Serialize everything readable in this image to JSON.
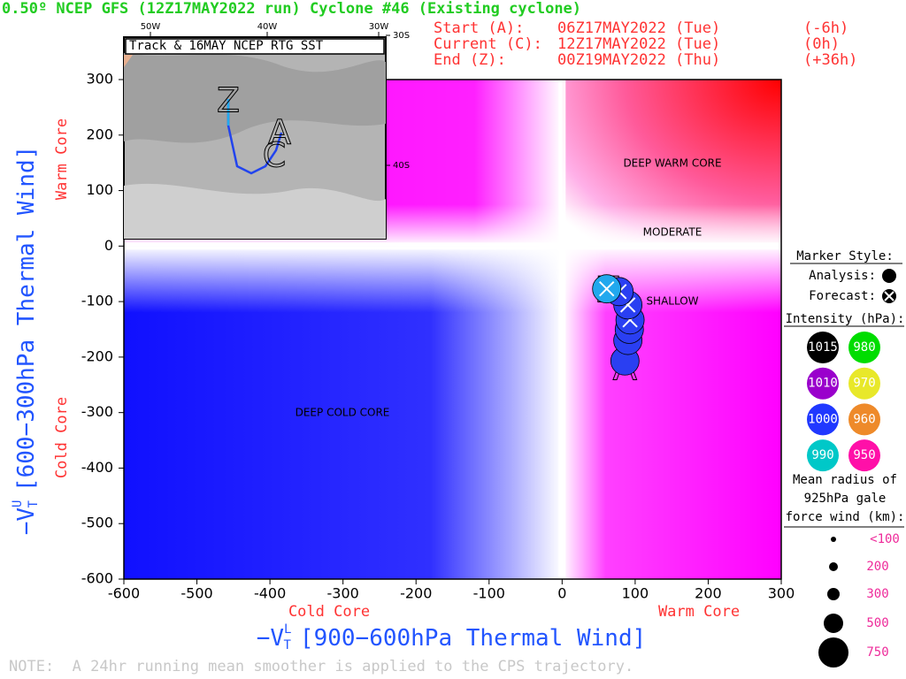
{
  "chart_data": {
    "type": "scatter",
    "title": "0.50º NCEP GFS (12Z17MAY2022 run) Cyclone #46 (Existing cyclone)",
    "time_info": [
      [
        "Start (A):",
        "06Z17MAY2022 (Tue)",
        "(-6h)"
      ],
      [
        "Current (C):",
        "12Z17MAY2022 (Tue)",
        "(0h)"
      ],
      [
        "End (Z):",
        "00Z19MAY2022 (Thu)",
        "(+36h)"
      ]
    ],
    "xlabel": {
      "main": "−V",
      "sub": "T",
      "sup": "L",
      "rest": "[900−600hPa Thermal Wind]"
    },
    "ylabel": {
      "main": "−V",
      "sub": "T",
      "sup": "U",
      "rest": "[600−300hPa Thermal Wind]"
    },
    "x_side_labels": [
      "Cold Core",
      "Warm Core"
    ],
    "y_side_labels": [
      "Cold Core",
      "Warm Core"
    ],
    "annotations": [
      "DEEP WARM CORE",
      "MODERATE",
      "SHALLOW",
      "DEEP COLD CORE"
    ],
    "track_labels": [
      "A",
      "Z"
    ],
    "xlim": [
      -600,
      300
    ],
    "ylim": [
      -600,
      300
    ],
    "xticks": [
      -600,
      -500,
      -400,
      -300,
      -200,
      -100,
      0,
      100,
      200,
      300
    ],
    "yticks": [
      -600,
      -500,
      -400,
      -300,
      -200,
      -100,
      0,
      100,
      200,
      300
    ],
    "series": [
      {
        "name": "Analysis:",
        "color": "#2a3ff2",
        "x": [
          86,
          90,
          92
        ],
        "values": [
          -207,
          -170,
          -150
        ]
      },
      {
        "name": "Forecast:",
        "color": "#2a3ff2",
        "x": [
          93,
          90,
          78,
          61
        ],
        "values": [
          -133,
          -106,
          -82,
          -77
        ]
      }
    ],
    "legend": {
      "marker_title": "Marker Style:",
      "intensity_title": "Intensity (hPa):",
      "intensity": [
        {
          "label": "1015",
          "color": "#000000"
        },
        {
          "label": "980",
          "color": "#00dd00"
        },
        {
          "label": "1010",
          "color": "#9a00cc"
        },
        {
          "label": "970",
          "color": "#e8e82a"
        },
        {
          "label": "1000",
          "color": "#2038ff"
        },
        {
          "label": "960",
          "color": "#ee8a2a"
        },
        {
          "label": "990",
          "color": "#00c8c8"
        },
        {
          "label": "950",
          "color": "#ff10a8"
        }
      ],
      "radius_title": [
        "Mean radius of",
        "925hPa gale",
        "force wind (km):"
      ],
      "radius": [
        "<100",
        "200",
        "300",
        "500",
        "750"
      ]
    },
    "inset": {
      "title": "Track & 16MAY NCEP RTG SST",
      "lon_labels": [
        "50W",
        "40W",
        "30W"
      ],
      "lat_labels": [
        "30S",
        "40S"
      ],
      "track_labels": [
        "A",
        "C",
        "Z"
      ]
    },
    "note": "NOTE:  A 24hr running mean smoother is applied to the CPS trajectory."
  }
}
